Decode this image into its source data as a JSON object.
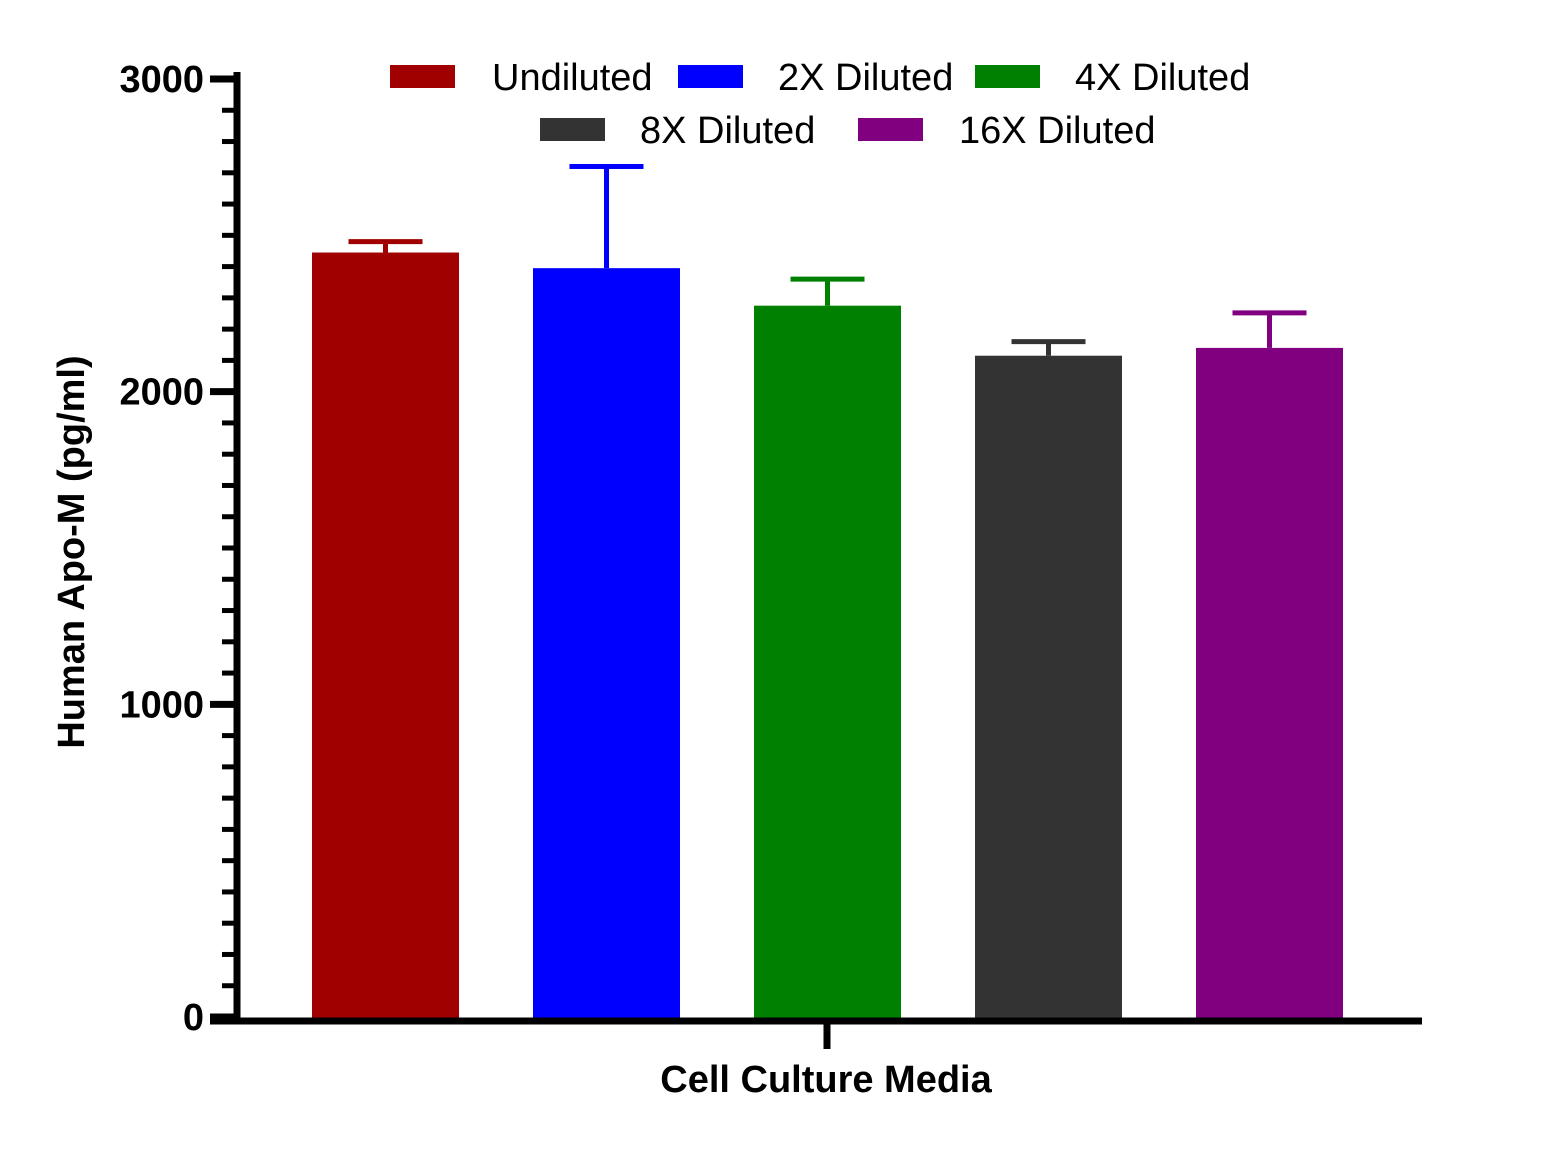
{
  "chart_data": {
    "type": "bar",
    "title": "",
    "xlabel": "Cell Culture Media",
    "ylabel": "Human Apo-M (pg/ml)",
    "ylim": [
      0,
      3000
    ],
    "yticks": [
      0,
      1000,
      2000,
      3000
    ],
    "y_minor_step": 100,
    "categories": [
      "Cell Culture Media"
    ],
    "grid": false,
    "legend_position": "top",
    "series": [
      {
        "name": "Undiluted",
        "values": [
          2445
        ],
        "error": [
          35
        ],
        "color": "#a00000"
      },
      {
        "name": "2X Diluted",
        "values": [
          2395
        ],
        "error": [
          325
        ],
        "color": "#0000ff"
      },
      {
        "name": "4X Diluted",
        "values": [
          2275
        ],
        "error": [
          85
        ],
        "color": "#008000"
      },
      {
        "name": "8X Diluted",
        "values": [
          2115
        ],
        "error": [
          45
        ],
        "color": "#333333"
      },
      {
        "name": "16X Diluted",
        "values": [
          2140
        ],
        "error": [
          112
        ],
        "color": "#800080"
      }
    ]
  }
}
